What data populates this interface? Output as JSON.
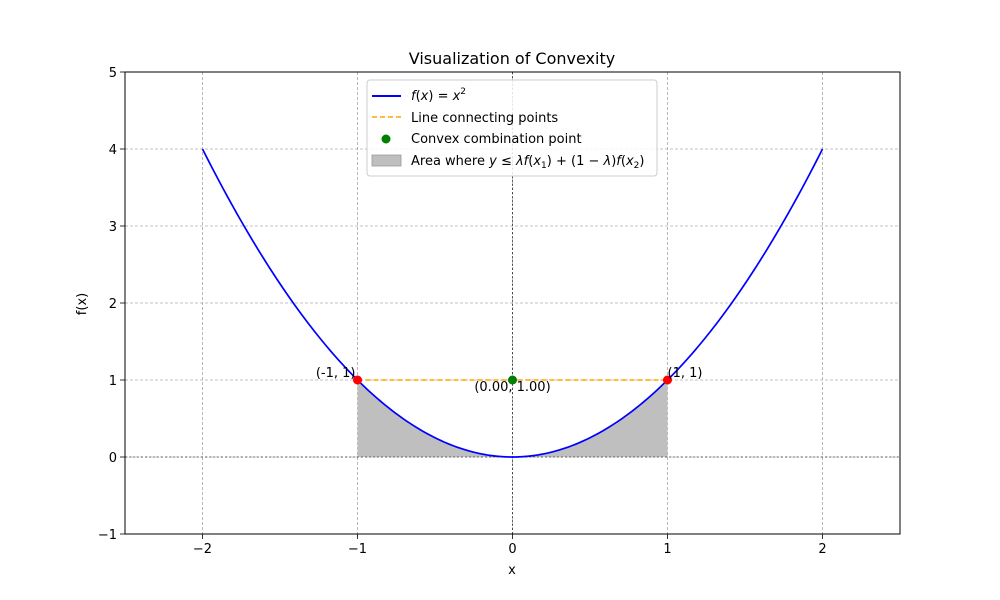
{
  "chart_data": {
    "type": "line",
    "title": "Visualization of Convexity",
    "xlabel": "x",
    "ylabel": "f(x)",
    "xlim": [
      -2.5,
      2.5
    ],
    "ylim": [
      -1,
      5
    ],
    "xticks": [
      -2,
      -1,
      0,
      1,
      2
    ],
    "xtick_labels": [
      "−2",
      "−1",
      "0",
      "1",
      "2"
    ],
    "yticks": [
      -1,
      0,
      1,
      2,
      3,
      4,
      5
    ],
    "ytick_labels": [
      "−1",
      "0",
      "1",
      "2",
      "3",
      "4",
      "5"
    ],
    "grid": true,
    "legend_position": "top-center",
    "curve": {
      "name": "f(x) = x²",
      "function": "x^2",
      "x_range": [
        -2,
        2
      ],
      "color": "#0000ff"
    },
    "chord": {
      "name": "Line connecting points",
      "x": [
        -1,
        1
      ],
      "y": [
        1,
        1
      ],
      "color": "#ffa500",
      "style": "dashed"
    },
    "convex_point": {
      "name": "Convex combination point",
      "x": 0,
      "y": 1,
      "color": "#008000",
      "label": "(0.00, 1.00)"
    },
    "endpoints": [
      {
        "x": -1,
        "y": 1,
        "label": "(-1, 1)",
        "color": "#ff0000"
      },
      {
        "x": 1,
        "y": 1,
        "label": "(1, 1)",
        "color": "#ff0000"
      }
    ],
    "fill": {
      "name": "Area where y ≤ λf(x₁) + (1 − λ)f(x₂)",
      "x_range": [
        -1,
        1
      ],
      "color": "#bfbfbf"
    }
  }
}
